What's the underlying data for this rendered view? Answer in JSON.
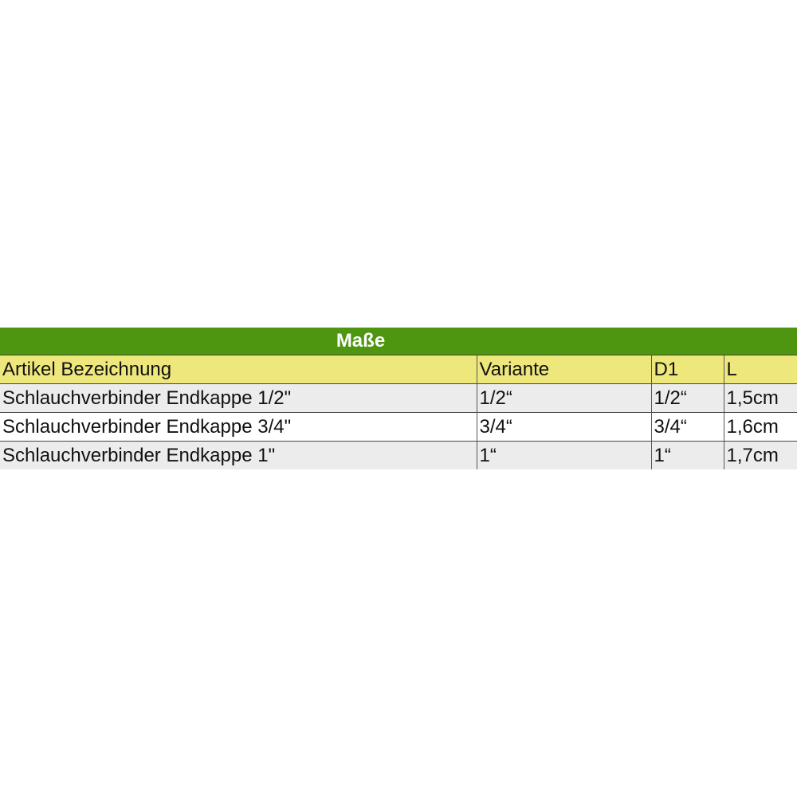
{
  "table": {
    "title": "Maße",
    "headers": [
      "Artikel Bezeichnung",
      "Variante",
      "D1",
      "L"
    ],
    "rows": [
      [
        "Schlauchverbinder Endkappe 1/2\"",
        "1/2“",
        "1/2“",
        "1,5cm"
      ],
      [
        "Schlauchverbinder Endkappe 3/4\"",
        "3/4“",
        "3/4“",
        "1,6cm"
      ],
      [
        "Schlauchverbinder Endkappe 1\"",
        "1“",
        "1“",
        "1,7cm"
      ]
    ],
    "colors": {
      "title_bg": "#4e9510",
      "header_bg": "#eee77c",
      "odd_row_bg": "#ececec"
    }
  }
}
